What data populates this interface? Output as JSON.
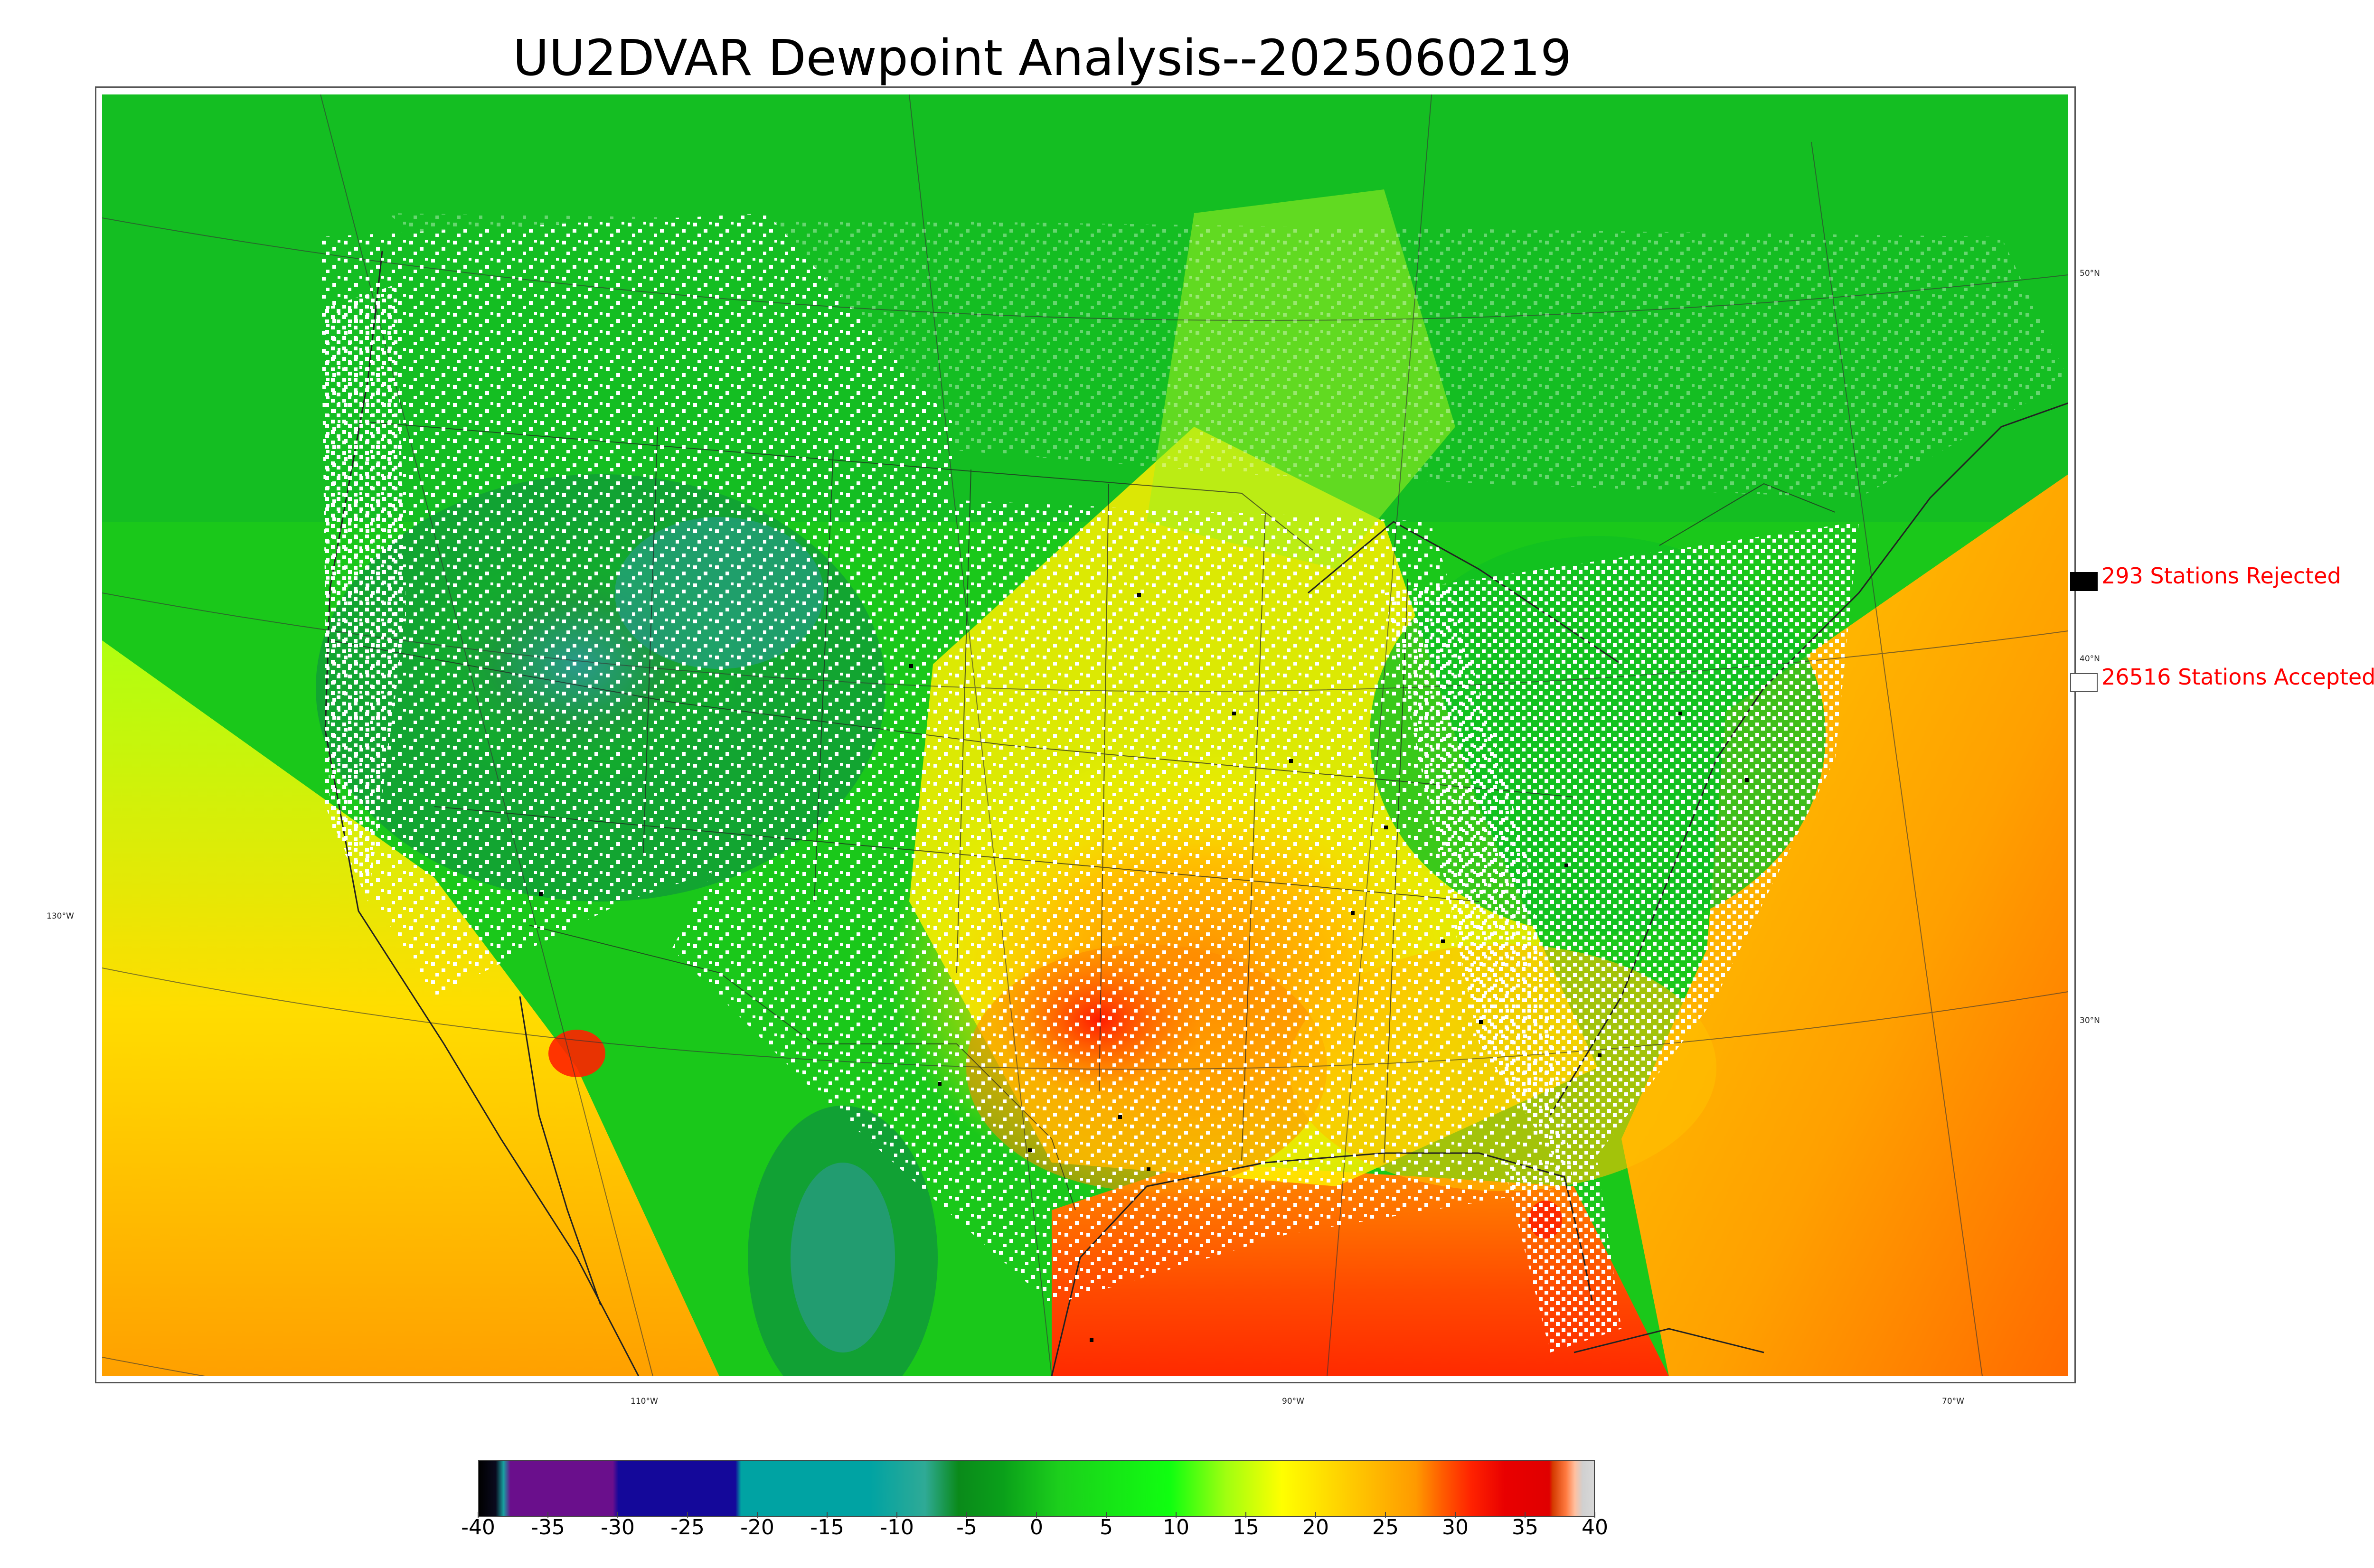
{
  "title": "UU2DVAR Dewpoint Analysis--2025060219",
  "map": {
    "latitude_labels": [
      {
        "text": "50°N"
      },
      {
        "text": "40°N"
      },
      {
        "text": "30°N"
      }
    ],
    "longitude_labels": [
      {
        "text": "130°W"
      },
      {
        "text": "110°W"
      },
      {
        "text": "90°W"
      },
      {
        "text": "70°W"
      }
    ]
  },
  "legend": {
    "rejected": {
      "label": "293 Stations Rejected",
      "color": "#000000"
    },
    "accepted": {
      "label": "26516 Stations Accepted",
      "color": "#ffffff"
    }
  },
  "colorbar": {
    "ticks": [
      "-40",
      "-35",
      "-30",
      "-25",
      "-20",
      "-15",
      "-10",
      "-5",
      "0",
      "5",
      "10",
      "15",
      "20",
      "25",
      "30",
      "35",
      "40"
    ],
    "min": -40,
    "max": 40
  },
  "colors": {
    "title": "#000000",
    "legend_text": "#ff0000",
    "land_cool": "#0a8a1a",
    "land_mid": "#10ff10",
    "humid": "#ffcc00",
    "very_humid": "#ff2200"
  }
}
